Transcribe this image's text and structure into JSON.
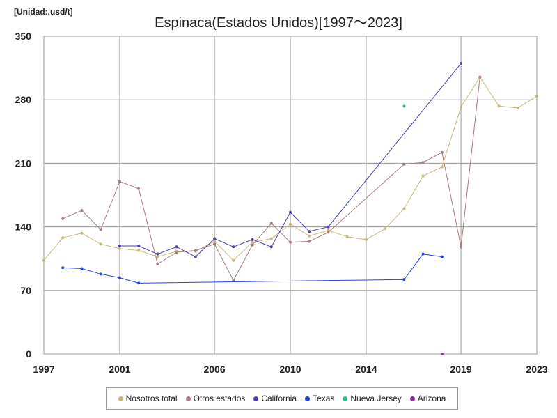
{
  "unit_label": "[Unidad:.usd/t]",
  "chart_data": {
    "type": "line",
    "title": "Espinaca(Estados Unidos)[1997～2023]",
    "xlabel": "",
    "ylabel": "",
    "xlim": [
      1997,
      2023
    ],
    "ylim": [
      0,
      350
    ],
    "x_ticks": [
      1997,
      2001,
      2006,
      2010,
      2014,
      2019,
      2023
    ],
    "y_ticks": [
      0,
      70,
      140,
      210,
      280,
      350
    ],
    "grid": true,
    "legend_position": "bottom",
    "series": [
      {
        "name": "Nosotros total",
        "color": "#c8b87a",
        "points": [
          [
            1997,
            103
          ],
          [
            1998,
            128
          ],
          [
            1999,
            133
          ],
          [
            2000,
            121
          ],
          [
            2001,
            116
          ],
          [
            2002,
            114
          ],
          [
            2003,
            107
          ],
          [
            2004,
            113
          ],
          [
            2005,
            113
          ],
          [
            2006,
            124
          ],
          [
            2007,
            103
          ],
          [
            2008,
            123
          ],
          [
            2009,
            127
          ],
          [
            2010,
            143
          ],
          [
            2011,
            130
          ],
          [
            2012,
            136
          ],
          [
            2013,
            129
          ],
          [
            2014,
            126
          ],
          [
            2015,
            138
          ],
          [
            2016,
            160
          ],
          [
            2017,
            196
          ],
          [
            2018,
            206
          ],
          [
            2019,
            272
          ],
          [
            2020,
            305
          ],
          [
            2021,
            273
          ],
          [
            2022,
            271
          ],
          [
            2023,
            284
          ]
        ]
      },
      {
        "name": "Otros estados",
        "color": "#a97a7a",
        "points": [
          [
            1998,
            149
          ],
          [
            1999,
            158
          ],
          [
            2000,
            137
          ],
          [
            2001,
            190
          ],
          [
            2002,
            182
          ],
          [
            2003,
            99
          ],
          [
            2004,
            112
          ],
          [
            2005,
            114
          ],
          [
            2006,
            121
          ],
          [
            2007,
            81
          ],
          [
            2008,
            120
          ],
          [
            2009,
            144
          ],
          [
            2010,
            123
          ],
          [
            2011,
            124
          ],
          [
            2012,
            134
          ],
          [
            2016,
            209
          ],
          [
            2017,
            211
          ],
          [
            2018,
            222
          ],
          [
            2019,
            118
          ],
          [
            2020,
            305
          ]
        ]
      },
      {
        "name": "California",
        "color": "#4a3fb0",
        "points": [
          [
            2001,
            119
          ],
          [
            2002,
            119
          ],
          [
            2003,
            110
          ],
          [
            2004,
            118
          ],
          [
            2005,
            107
          ],
          [
            2006,
            127
          ],
          [
            2007,
            118
          ],
          [
            2008,
            126
          ],
          [
            2009,
            118
          ],
          [
            2010,
            156
          ],
          [
            2011,
            135
          ],
          [
            2012,
            140
          ],
          [
            2019,
            320
          ]
        ]
      },
      {
        "name": "Texas",
        "color": "#2244dd",
        "points": [
          [
            1998,
            95
          ],
          [
            1999,
            94
          ],
          [
            2000,
            88
          ],
          [
            2001,
            84
          ],
          [
            2002,
            78
          ],
          [
            2016,
            82
          ],
          [
            2017,
            110
          ],
          [
            2018,
            107
          ]
        ]
      },
      {
        "name": "Nueva Jersey",
        "color": "#2bc28a",
        "points": [
          [
            2016,
            273
          ]
        ]
      },
      {
        "name": "Arizona",
        "color": "#8a2f8a",
        "points": [
          [
            2018,
            0
          ]
        ]
      }
    ]
  }
}
